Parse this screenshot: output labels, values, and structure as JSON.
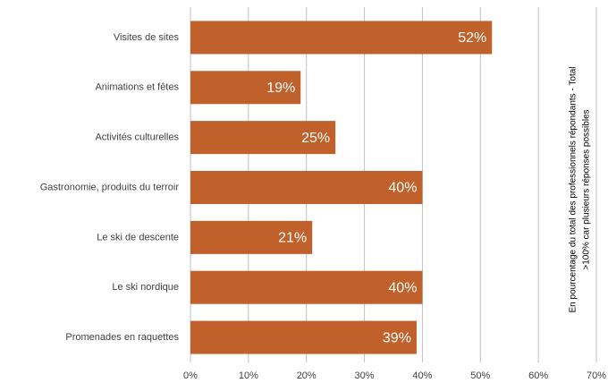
{
  "chart_data": {
    "type": "bar",
    "orientation": "horizontal",
    "categories": [
      "Visites de sites",
      "Animations et fêtes",
      "Activités culturelles",
      "Gastronomie, produits du terroir",
      "Le ski de descente",
      "Le ski nordique",
      "Promenades en raquettes"
    ],
    "values": [
      52,
      19,
      25,
      40,
      21,
      40,
      39
    ],
    "value_labels": [
      "52%",
      "19%",
      "25%",
      "40%",
      "21%",
      "40%",
      "39%"
    ],
    "color": "#c0602a",
    "xlim": [
      0,
      70
    ],
    "xticks": [
      {
        "value": 0,
        "label": "0%"
      },
      {
        "value": 10,
        "label": "10%"
      },
      {
        "value": 20,
        "label": "20%"
      },
      {
        "value": 30,
        "label": "30%"
      },
      {
        "value": 40,
        "label": "40%"
      },
      {
        "value": 50,
        "label": "50%"
      },
      {
        "value": 60,
        "label": "60%"
      },
      {
        "value": 70,
        "label": "70%"
      }
    ],
    "grid": true,
    "annotations": [
      "En pourcentage du total des professionnels répondants - Total",
      ">100% car plusieurs réponses possibles"
    ]
  }
}
